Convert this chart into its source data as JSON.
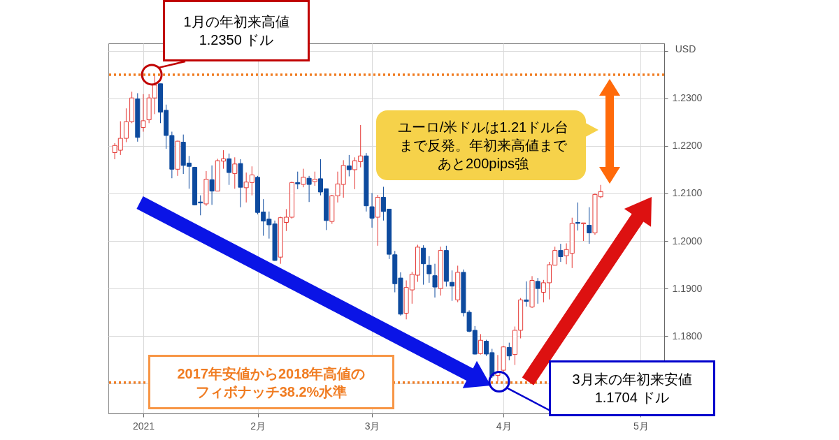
{
  "chart_data": {
    "type": "candlestick",
    "categories": [
      null,
      null,
      null,
      null,
      null,
      "2021",
      null,
      null,
      null,
      null,
      null,
      null,
      null,
      null,
      null,
      null,
      null,
      null,
      null,
      null,
      null,
      null,
      null,
      null,
      null,
      "2月",
      null,
      null,
      null,
      null,
      null,
      null,
      null,
      null,
      null,
      null,
      null,
      null,
      null,
      null,
      null,
      null,
      null,
      null,
      null,
      "3月",
      null,
      null,
      null,
      null,
      null,
      null,
      null,
      null,
      null,
      null,
      null,
      null,
      null,
      null,
      null,
      null,
      null,
      null,
      null,
      null,
      null,
      null,
      "4月",
      null,
      null,
      null,
      null,
      null,
      null,
      null,
      null,
      null,
      null,
      null,
      null,
      null,
      null,
      null,
      null,
      null,
      null,
      null,
      null,
      null,
      null,
      null,
      "5月",
      null,
      null,
      null
    ],
    "ohlc": [
      [
        1.2186,
        1.2206,
        1.2172,
        1.2201
      ],
      [
        1.2191,
        1.2252,
        1.2181,
        1.2216
      ],
      [
        1.2216,
        1.2279,
        1.2208,
        1.2251
      ],
      [
        1.2251,
        1.2314,
        1.2248,
        1.2301
      ],
      [
        1.2299,
        1.2311,
        1.2209,
        1.2218
      ],
      [
        1.2239,
        1.2309,
        1.223,
        1.2253
      ],
      [
        1.2255,
        1.2309,
        1.2248,
        1.2301
      ],
      [
        1.2301,
        1.235,
        1.2267,
        1.2328
      ],
      [
        1.2331,
        1.2331,
        1.2248,
        1.2271
      ],
      [
        1.2275,
        1.2287,
        1.2194,
        1.2222
      ],
      [
        1.2222,
        1.223,
        1.2132,
        1.2151
      ],
      [
        1.2151,
        1.2211,
        1.2137,
        1.221
      ],
      [
        1.2208,
        1.2224,
        1.2141,
        1.2159
      ],
      [
        1.2164,
        1.2179,
        1.211,
        1.2157
      ],
      [
        1.2155,
        1.2156,
        1.2075,
        1.2076
      ],
      [
        1.2082,
        1.2096,
        1.2054,
        1.208
      ],
      [
        1.2078,
        1.2147,
        1.2074,
        1.213
      ],
      [
        1.2129,
        1.2159,
        1.2076,
        1.2105
      ],
      [
        1.2105,
        1.2173,
        1.2105,
        1.2169
      ],
      [
        1.2168,
        1.2191,
        1.2152,
        1.2173
      ],
      [
        1.2173,
        1.2184,
        1.2118,
        1.2144
      ],
      [
        1.2142,
        1.2176,
        1.211,
        1.2162
      ],
      [
        1.2163,
        1.2172,
        1.2071,
        1.2113
      ],
      [
        1.2112,
        1.2144,
        1.2081,
        1.2124
      ],
      [
        1.2123,
        1.2157,
        1.2096,
        1.2139
      ],
      [
        1.2134,
        1.2137,
        1.2056,
        1.206
      ],
      [
        1.2061,
        1.2088,
        1.2011,
        1.2042
      ],
      [
        1.2046,
        1.2062,
        1.2005,
        1.2034
      ],
      [
        1.2036,
        1.2043,
        1.1958,
        1.1959
      ],
      [
        1.1966,
        1.2051,
        1.1952,
        1.2049
      ],
      [
        1.2039,
        1.2067,
        1.2021,
        1.205
      ],
      [
        1.205,
        1.2125,
        1.2047,
        1.2123
      ],
      [
        1.2123,
        1.2146,
        1.2109,
        1.212
      ],
      [
        1.2119,
        1.2152,
        1.2113,
        1.2134
      ],
      [
        1.2132,
        1.2137,
        1.2082,
        1.2119
      ],
      [
        1.2125,
        1.2146,
        1.2116,
        1.213
      ],
      [
        1.2131,
        1.2172,
        1.2096,
        1.2103
      ],
      [
        1.211,
        1.211,
        1.2023,
        1.2043
      ],
      [
        1.2041,
        1.2097,
        1.2036,
        1.2095
      ],
      [
        1.2095,
        1.2146,
        1.2081,
        1.212
      ],
      [
        1.2119,
        1.217,
        1.2091,
        1.2159
      ],
      [
        1.2158,
        1.2181,
        1.2136,
        1.215
      ],
      [
        1.215,
        1.2176,
        1.2109,
        1.2169
      ],
      [
        1.2167,
        1.2244,
        1.2155,
        1.2179
      ],
      [
        1.2179,
        1.2185,
        1.2062,
        1.2074
      ],
      [
        1.2072,
        1.2101,
        1.2028,
        1.2048
      ],
      [
        1.205,
        1.2097,
        1.199,
        1.2092
      ],
      [
        1.2092,
        1.2114,
        1.2043,
        1.2062
      ],
      [
        1.2067,
        1.2067,
        1.1962,
        1.1972
      ],
      [
        1.1971,
        1.1979,
        1.1892,
        1.191
      ],
      [
        1.1922,
        1.1934,
        1.1843,
        1.1846
      ],
      [
        1.1848,
        1.1917,
        1.1835,
        1.1902
      ],
      [
        1.1897,
        1.1935,
        1.1868,
        1.193
      ],
      [
        1.1928,
        1.1992,
        1.1914,
        1.1987
      ],
      [
        1.1985,
        1.1991,
        1.1908,
        1.1952
      ],
      [
        1.1949,
        1.1968,
        1.1912,
        1.1931
      ],
      [
        1.1927,
        1.1952,
        1.1881,
        1.1903
      ],
      [
        1.19,
        1.1988,
        1.1885,
        1.198
      ],
      [
        1.198,
        1.199,
        1.1904,
        1.1915
      ],
      [
        1.1913,
        1.1938,
        1.1874,
        1.1905
      ],
      [
        1.1876,
        1.1948,
        1.1871,
        1.1934
      ],
      [
        1.1934,
        1.194,
        1.1841,
        1.1849
      ],
      [
        1.185,
        1.1854,
        1.1808,
        1.181
      ],
      [
        1.1812,
        1.1821,
        1.1761,
        1.1762
      ],
      [
        1.1763,
        1.1804,
        1.1761,
        1.1791
      ],
      [
        1.1789,
        1.1792,
        1.1758,
        1.1762
      ],
      [
        1.1765,
        1.1773,
        1.1712,
        1.1716
      ],
      [
        1.1717,
        1.176,
        1.1704,
        1.1723
      ],
      [
        1.1728,
        1.1779,
        1.1723,
        1.1777
      ],
      [
        1.1776,
        1.1786,
        1.1749,
        1.1758
      ],
      [
        1.1761,
        1.182,
        1.1739,
        1.1812
      ],
      [
        1.1812,
        1.188,
        1.1795,
        1.1876
      ],
      [
        1.1876,
        1.1915,
        1.1862,
        1.1873
      ],
      [
        1.1861,
        1.1926,
        1.1859,
        1.1917
      ],
      [
        1.1915,
        1.1922,
        1.1868,
        1.19
      ],
      [
        1.1892,
        1.1918,
        1.1871,
        1.1912
      ],
      [
        1.1912,
        1.1956,
        1.1877,
        1.195
      ],
      [
        1.1949,
        1.1988,
        1.1949,
        1.198
      ],
      [
        1.198,
        1.1994,
        1.1956,
        1.1967
      ],
      [
        1.1969,
        1.1995,
        1.1951,
        1.1982
      ],
      [
        1.1974,
        1.2049,
        1.1943,
        1.2037
      ],
      [
        1.2039,
        1.2081,
        1.2022,
        1.2037
      ],
      [
        1.2036,
        1.2038,
        1.2,
        1.2038
      ],
      [
        1.2033,
        1.2071,
        1.1994,
        1.2017
      ],
      [
        1.2017,
        1.21,
        1.2013,
        1.2098
      ],
      [
        1.2093,
        1.2118,
        1.209,
        1.2104
      ],
      null,
      null,
      null,
      null,
      null,
      null,
      null,
      null,
      null,
      null
    ],
    "colors": [
      "#e53935",
      "#e53935",
      "#e53935",
      "#e53935",
      "#0d4a9e",
      "#e53935",
      "#e53935",
      "#e53935",
      "#0d4a9e",
      "#0d4a9e",
      "#0d4a9e",
      "#e53935",
      "#0d4a9e",
      "#0d4a9e",
      "#0d4a9e",
      "#0d4a9e",
      "#e53935",
      "#0d4a9e",
      "#e53935",
      "#e53935",
      "#0d4a9e",
      "#e53935",
      "#0d4a9e",
      "#e53935",
      "#e53935",
      "#0d4a9e",
      "#0d4a9e",
      "#0d4a9e",
      "#0d4a9e",
      "#e53935",
      "#e53935",
      "#e53935",
      "#0d4a9e",
      "#e53935",
      "#0d4a9e",
      "#e53935",
      "#0d4a9e",
      "#0d4a9e",
      "#e53935",
      "#e53935",
      "#e53935",
      "#0d4a9e",
      "#e53935",
      "#e53935",
      "#0d4a9e",
      "#0d4a9e",
      "#e53935",
      "#0d4a9e",
      "#0d4a9e",
      "#0d4a9e",
      "#0d4a9e",
      "#e53935",
      "#e53935",
      "#e53935",
      "#0d4a9e",
      "#0d4a9e",
      "#0d4a9e",
      "#e53935",
      "#0d4a9e",
      "#0d4a9e",
      "#e53935",
      "#0d4a9e",
      "#0d4a9e",
      "#0d4a9e",
      "#e53935",
      "#0d4a9e",
      "#0d4a9e",
      "#e53935",
      "#e53935",
      "#0d4a9e",
      "#e53935",
      "#e53935",
      "#0d4a9e",
      "#e53935",
      "#0d4a9e",
      "#e53935",
      "#e53935",
      "#e53935",
      "#0d4a9e",
      "#e53935",
      "#e53935",
      "#0d4a9e",
      "#e53935",
      "#0d4a9e",
      "#e53935",
      "#e53935",
      null,
      null,
      null,
      null,
      null,
      null,
      null,
      null,
      null,
      null
    ],
    "ylabel": "USD",
    "ylim": [
      1.1637,
      1.2416
    ],
    "yticks": [
      {
        "value": 1.17,
        "label": null
      },
      {
        "value": 1.18,
        "label": "1.1800"
      },
      {
        "value": 1.19,
        "label": "1.1900"
      },
      {
        "value": 1.2,
        "label": "1.2000"
      },
      {
        "value": 1.21,
        "label": "1.2100"
      },
      {
        "value": 1.22,
        "label": "1.2200"
      },
      {
        "value": 1.23,
        "label": "1.2300"
      },
      {
        "value": 1.24,
        "label": null
      }
    ],
    "grid": true,
    "ref_lines": [
      {
        "axis": "y",
        "value": 1.235,
        "color": "#f07c22",
        "line_style": "dotted"
      },
      {
        "axis": "y",
        "value": 1.1702,
        "color": "#f07c22",
        "line_style": "dotted",
        "label": "2017年安値から2018年高値のフィボナッチ38.2%水準"
      }
    ],
    "annotations": [
      {
        "text": "1月の年初来高値\n1.2350 ドル",
        "y": 1.235
      },
      "ユーロ/米ドルは1.21ドル台まで反発。年初来高値まであと200pips強",
      {
        "text": "3月末の年初来安値\n1.1704 ドル",
        "y": 1.1704
      }
    ]
  }
}
